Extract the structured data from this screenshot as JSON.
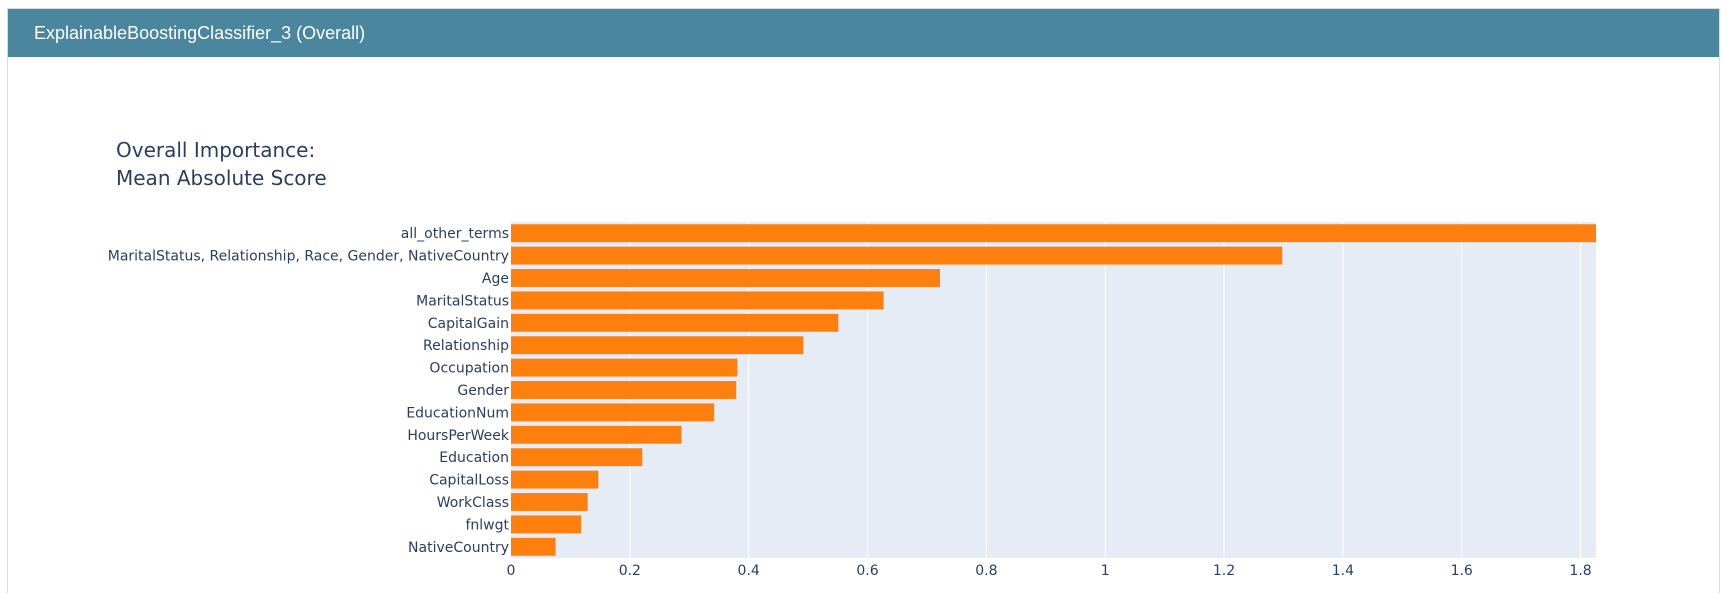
{
  "panel": {
    "title": "ExplainableBoostingClassifier_3 (Overall)",
    "header_color": "#4a879f"
  },
  "chart_data": {
    "type": "bar",
    "orientation": "horizontal",
    "title_lines": [
      "Overall Importance:",
      "Mean Absolute Score"
    ],
    "categories": [
      "all_other_terms",
      "MaritalStatus, Relationship, Race, Gender, NativeCountry",
      "Age",
      "MaritalStatus",
      "CapitalGain",
      "Relationship",
      "Occupation",
      "Gender",
      "EducationNum",
      "HoursPerWeek",
      "Education",
      "CapitalLoss",
      "WorkClass",
      "fnlwgt",
      "NativeCountry"
    ],
    "values": [
      1.826,
      1.298,
      0.722,
      0.627,
      0.551,
      0.492,
      0.381,
      0.379,
      0.342,
      0.287,
      0.221,
      0.147,
      0.129,
      0.118,
      0.075
    ],
    "xlim": [
      0,
      1.826
    ],
    "xticks": [
      0,
      0.2,
      0.4,
      0.6,
      0.8,
      1,
      1.2,
      1.4,
      1.6,
      1.8
    ],
    "bar_color": "#ff7f0e",
    "plot_background": "#e5ecf6",
    "grid": true
  }
}
